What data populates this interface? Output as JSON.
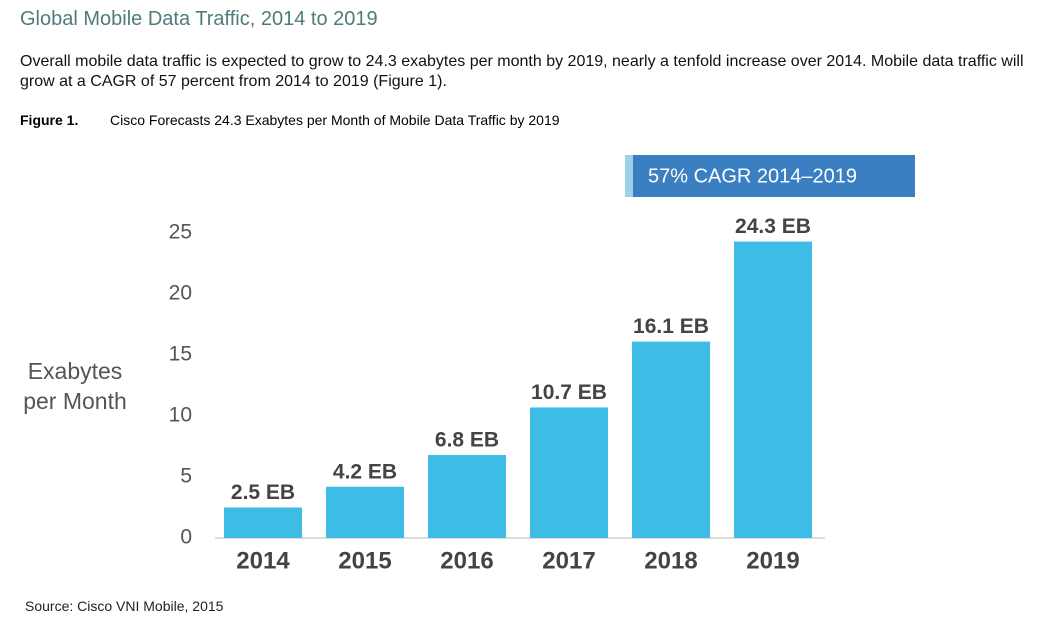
{
  "heading": "Global Mobile Data Traffic, 2014 to 2019",
  "paragraph": "Overall mobile data traffic is expected to grow to 24.3 exabytes per month by 2019, nearly a tenfold increase over 2014. Mobile data traffic will grow at a CAGR of 57 percent from 2014 to 2019 (Figure 1).",
  "figure_label": "Figure 1.",
  "figure_caption": "Cisco Forecasts 24.3 Exabytes per Month of Mobile Data Traffic by 2019",
  "source": "Source: Cisco VNI Mobile, 2015",
  "chart_data": {
    "type": "bar",
    "annotation": "57% CAGR 2014–2019",
    "ylabel": "Exabytes per Month",
    "categories": [
      "2014",
      "2015",
      "2016",
      "2017",
      "2018",
      "2019"
    ],
    "values": [
      2.5,
      4.2,
      6.8,
      10.7,
      16.1,
      24.3
    ],
    "value_labels": [
      "2.5 EB",
      "4.2 EB",
      "6.8 EB",
      "10.7 EB",
      "16.1 EB",
      "24.3 EB"
    ],
    "color": "#3dbde6",
    "ylim": [
      0,
      25
    ],
    "yticks": [
      0,
      5,
      10,
      15,
      20,
      25
    ],
    "grid": false
  }
}
